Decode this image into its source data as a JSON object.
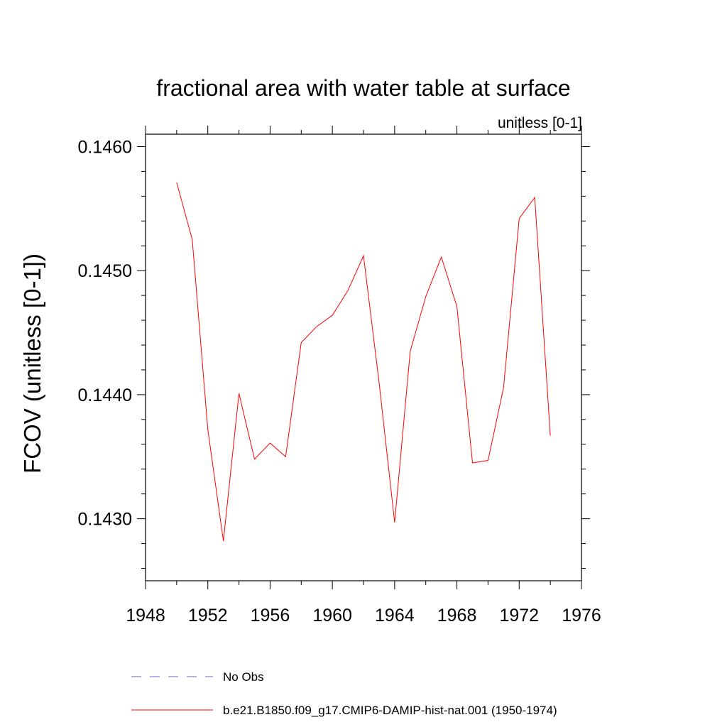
{
  "chart_data": {
    "type": "line",
    "title": "fractional area with water table at surface",
    "subtitle": "unitless [0-1]",
    "ylabel": "FCOV  (unitless [0-1])",
    "xlabel": "",
    "xlim": [
      1948,
      1976
    ],
    "ylim": [
      0.1425,
      0.1461
    ],
    "x_ticks": [
      1948,
      1952,
      1956,
      1960,
      1964,
      1968,
      1972,
      1976
    ],
    "x_tick_labels": [
      "1948",
      "1952",
      "1956",
      "1960",
      "1964",
      "1968",
      "1972",
      "1976"
    ],
    "y_ticks": [
      0.143,
      0.144,
      0.145,
      0.146
    ],
    "y_tick_labels": [
      "0.1430",
      "0.1440",
      "0.1450",
      "0.1460"
    ],
    "grid": false,
    "legend_position": "bottom",
    "series": [
      {
        "name": "No Obs",
        "color": "#6666cc",
        "style": "dashed",
        "x": [],
        "values": []
      },
      {
        "name": "b.e21.B1850.f09_g17.CMIP6-DAMIP-hist-nat.001 (1950-1974)",
        "color": "#ff0000",
        "style": "solid",
        "x": [
          1950,
          1951,
          1952,
          1953,
          1954,
          1955,
          1956,
          1957,
          1958,
          1959,
          1960,
          1961,
          1962,
          1963,
          1964,
          1965,
          1966,
          1967,
          1968,
          1969,
          1970,
          1971,
          1972,
          1973,
          1974
        ],
        "values": [
          0.14571,
          0.14525,
          0.14372,
          0.14282,
          0.14401,
          0.14348,
          0.14361,
          0.1435,
          0.14442,
          0.14455,
          0.14464,
          0.14484,
          0.14512,
          0.1441,
          0.14297,
          0.14435,
          0.14479,
          0.14511,
          0.14471,
          0.14345,
          0.14347,
          0.14406,
          0.14542,
          0.14559,
          0.14367
        ]
      }
    ]
  }
}
